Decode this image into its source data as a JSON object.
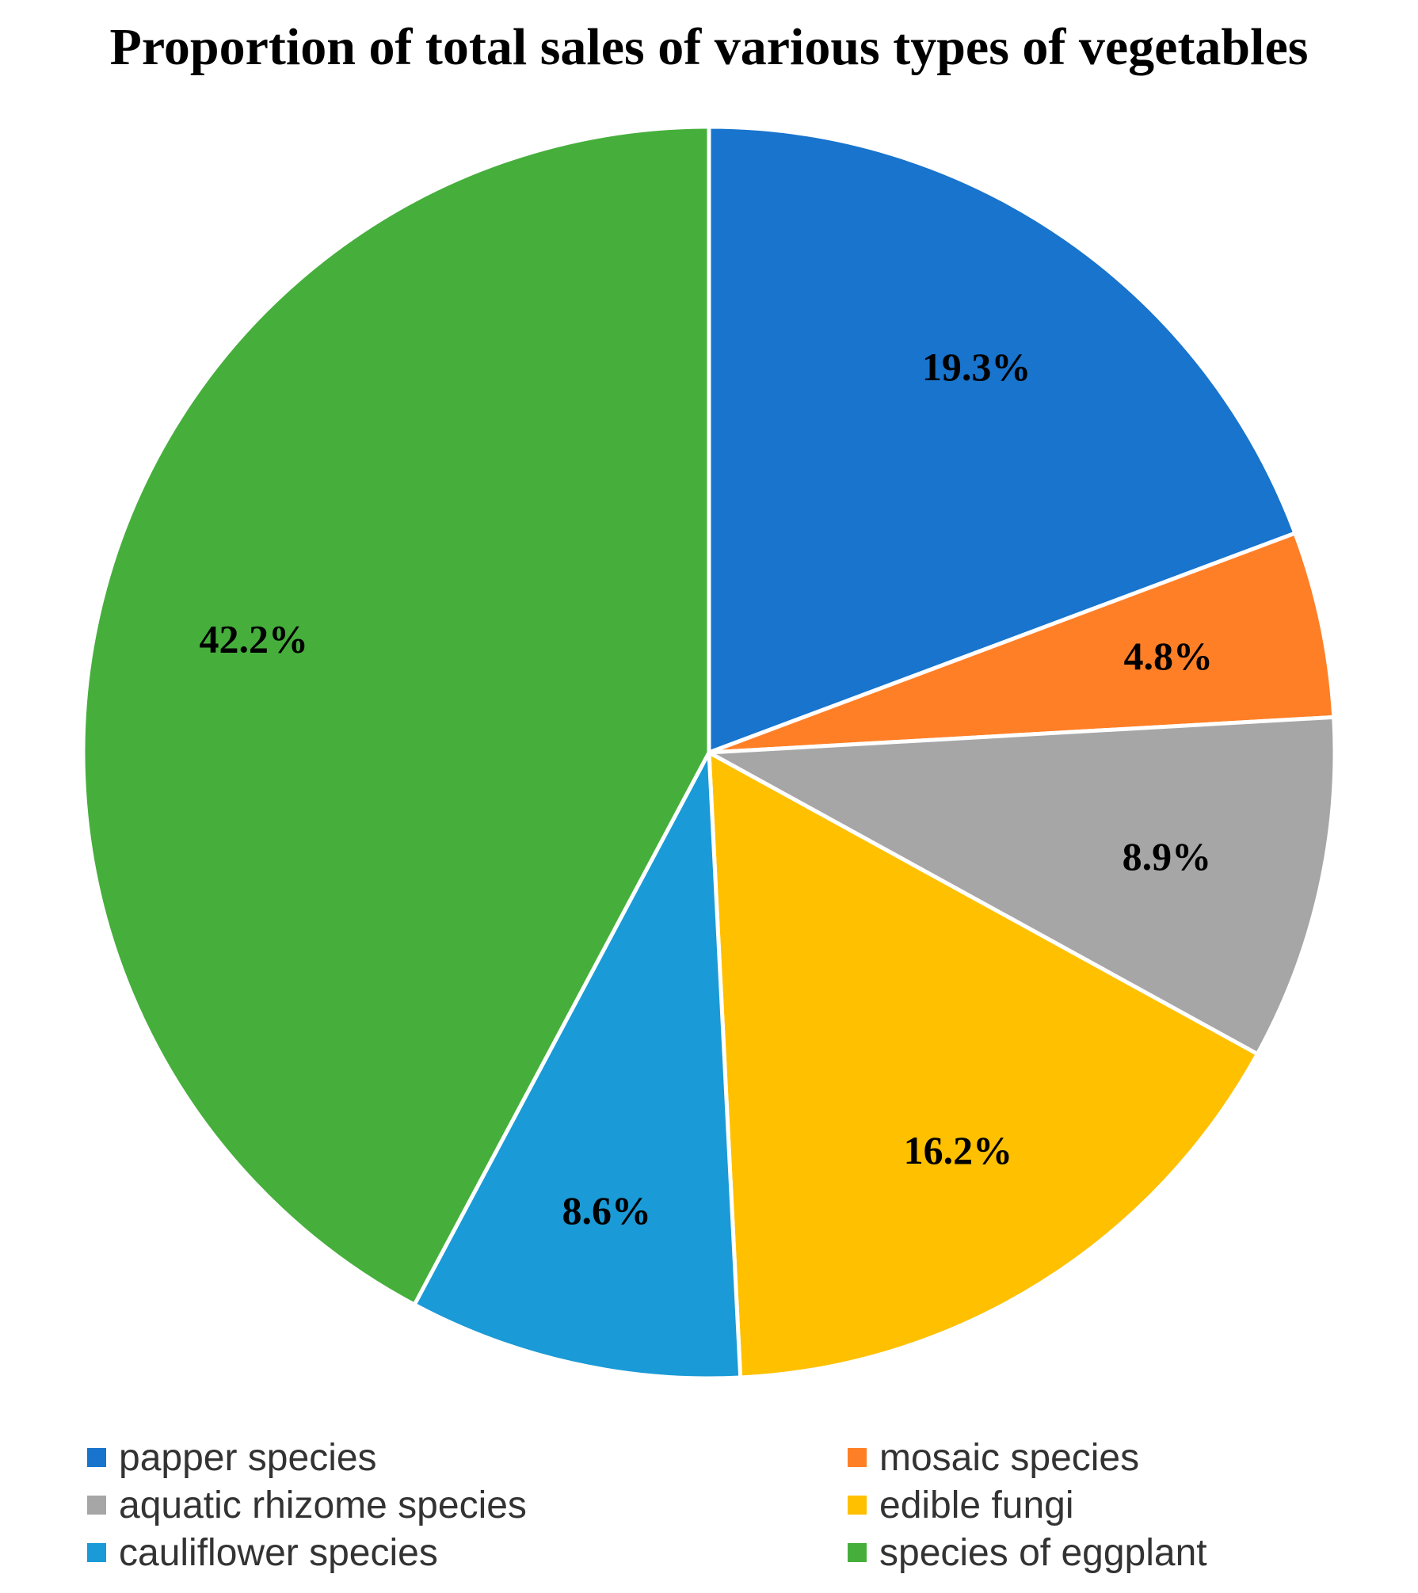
{
  "chart_data": {
    "type": "pie",
    "title": "Proportion of total sales of various types of vegetables",
    "categories": [
      "papper species",
      "mosaic species",
      "aquatic rhizome species",
      "edible fungi",
      "cauliflower species",
      "species of eggplant"
    ],
    "values": [
      19.3,
      4.8,
      8.9,
      16.2,
      8.6,
      42.2
    ],
    "labels": [
      "19.3%",
      "4.8%",
      "8.9%",
      "16.2%",
      "8.6%",
      "42.2%"
    ],
    "colors": [
      "#1874CD",
      "#FF7F27",
      "#A6A6A6",
      "#FFC000",
      "#1A9AD6",
      "#46AF3C"
    ],
    "legend_position": "bottom",
    "unit": "%"
  }
}
